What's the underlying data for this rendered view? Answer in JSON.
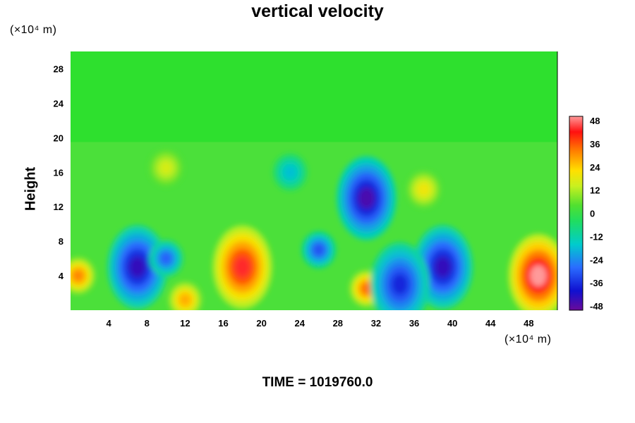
{
  "chart_data": {
    "type": "heatmap",
    "title": "vertical velocity",
    "ylabel": "Height",
    "y_unit": "(×10⁴ m)",
    "x_unit": "(×10⁴ m)",
    "footer": "TIME = 1019760.0",
    "xlim": [
      0,
      51
    ],
    "ylim": [
      0,
      30
    ],
    "x_ticks": [
      4,
      8,
      12,
      16,
      20,
      24,
      28,
      32,
      36,
      40,
      44,
      48
    ],
    "y_ticks": [
      4,
      8,
      12,
      16,
      20,
      24,
      28
    ],
    "colorbar": {
      "min": -48,
      "max": 48,
      "tick_labels": [
        48,
        36,
        24,
        12,
        0,
        -12,
        -24,
        -36,
        -48
      ]
    },
    "features": [
      {
        "x": 18.0,
        "y": 5.0,
        "value": 44
      },
      {
        "x": 49.0,
        "y": 4.0,
        "value": 50
      },
      {
        "x": 0.8,
        "y": 4.0,
        "value": 32
      },
      {
        "x": 31.0,
        "y": 2.5,
        "value": 34
      },
      {
        "x": 12.0,
        "y": 1.2,
        "value": 28
      },
      {
        "x": 7.0,
        "y": 5.0,
        "value": -44
      },
      {
        "x": 10.0,
        "y": 6.0,
        "value": -30
      },
      {
        "x": 26.0,
        "y": 7.0,
        "value": -32
      },
      {
        "x": 31.0,
        "y": 13.0,
        "value": -46
      },
      {
        "x": 39.0,
        "y": 5.0,
        "value": -44
      },
      {
        "x": 34.5,
        "y": 3.0,
        "value": -38
      },
      {
        "x": 23.0,
        "y": 16.0,
        "value": -18
      },
      {
        "x": 10.0,
        "y": 16.5,
        "value": 16
      },
      {
        "x": 37.0,
        "y": 14.0,
        "value": 20
      }
    ]
  }
}
